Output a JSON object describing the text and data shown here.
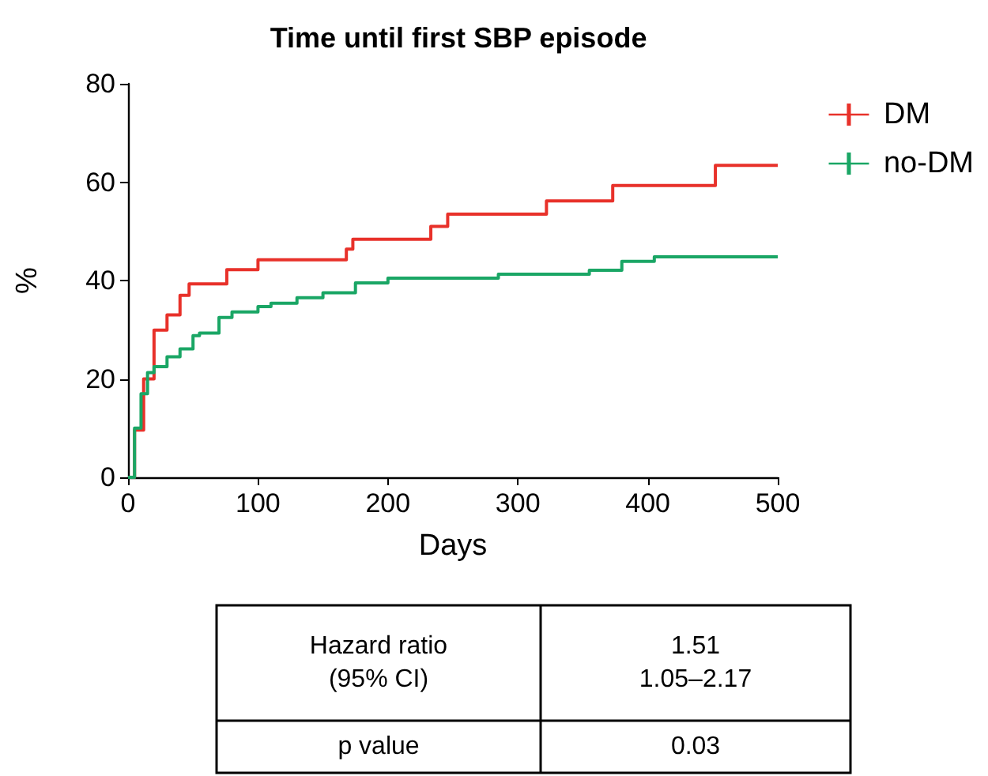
{
  "chart_data": {
    "type": "step",
    "title": "Time until first SBP episode",
    "xlabel": "Days",
    "ylabel": "%",
    "xlim": [
      0,
      500
    ],
    "xticks": [
      0,
      100,
      200,
      300,
      400,
      500
    ],
    "ylim": [
      0,
      80
    ],
    "yticks": [
      0,
      20,
      40,
      60,
      80
    ],
    "grid": false,
    "legend": "top right",
    "marker": "none",
    "line_style": "solid",
    "series": [
      {
        "name": "DM",
        "color": "#e8312a",
        "x": [
          0,
          5,
          12,
          20,
          30,
          40,
          47,
          76,
          100,
          168,
          173,
          233,
          246,
          322,
          373,
          452,
          500
        ],
        "values": [
          0,
          9.6,
          20,
          29.9,
          33,
          37,
          39.3,
          42.2,
          44.2,
          46.4,
          48.4,
          51,
          53.5,
          56.2,
          59.3,
          63.4,
          63.4
        ]
      },
      {
        "name": "no-DM",
        "color": "#1aa665",
        "x": [
          0,
          5,
          10,
          15,
          20,
          30,
          40,
          50,
          55,
          70,
          80,
          100,
          110,
          130,
          150,
          175,
          200,
          285,
          355,
          380,
          405,
          500
        ],
        "values": [
          0,
          10,
          17,
          21.3,
          22.5,
          24.5,
          26.1,
          28.8,
          29.3,
          32.5,
          33.6,
          34.7,
          35.4,
          36.5,
          37.5,
          39.5,
          40.5,
          41.3,
          42.1,
          43.9,
          44.8,
          44.8
        ]
      }
    ],
    "annotations": [
      "Hazard ratio\n(95% CI)",
      "1.51\n1.05–2.17",
      "p value",
      "0.03"
    ]
  }
}
